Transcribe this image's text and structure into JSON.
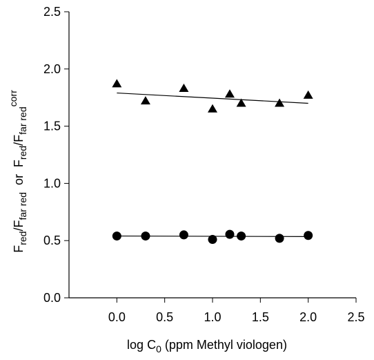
{
  "chart_data": {
    "type": "scatter",
    "x_label": [
      "log C",
      "0",
      " (ppm Methyl viologen)"
    ],
    "y_label": [
      "F",
      "red",
      "/F",
      "far red",
      "  or  ",
      "F",
      "red",
      "/F",
      "far red",
      "corr"
    ],
    "xlim": [
      -0.5,
      2.5
    ],
    "xticks": [
      {
        "value": 0,
        "label": "0.0"
      },
      {
        "value": 0.5,
        "label": "0.5"
      },
      {
        "value": 1,
        "label": "1.0"
      },
      {
        "value": 1.5,
        "label": "1.5"
      },
      {
        "value": 2,
        "label": "2.0"
      },
      {
        "value": 2.5,
        "label": "2.5"
      }
    ],
    "ylim": [
      0,
      2.5
    ],
    "yticks": [
      {
        "value": 0,
        "label": "0.0"
      },
      {
        "value": 0.5,
        "label": "0.5"
      },
      {
        "value": 1,
        "label": "1.0"
      },
      {
        "value": 1.5,
        "label": "1.5"
      },
      {
        "value": 2,
        "label": "2.0"
      },
      {
        "value": 2.5,
        "label": "2.5"
      }
    ],
    "series": [
      {
        "marker": "triangle",
        "color": "#000000",
        "x": [
          0,
          0.3,
          0.7,
          1.0,
          1.18,
          1.3,
          1.7,
          2.0
        ],
        "values": [
          1.87,
          1.72,
          1.83,
          1.65,
          1.78,
          1.7,
          1.7,
          1.77
        ],
        "fit": {
          "x": [
            0,
            2
          ],
          "values": [
            1.79,
            1.7
          ]
        }
      },
      {
        "marker": "circle",
        "color": "#000000",
        "x": [
          0,
          0.3,
          0.7,
          1.0,
          1.18,
          1.3,
          1.7,
          2.0
        ],
        "values": [
          0.54,
          0.54,
          0.55,
          0.51,
          0.555,
          0.54,
          0.52,
          0.545
        ],
        "fit": {
          "x": [
            0,
            2
          ],
          "values": [
            0.54,
            0.535
          ]
        }
      }
    ]
  }
}
